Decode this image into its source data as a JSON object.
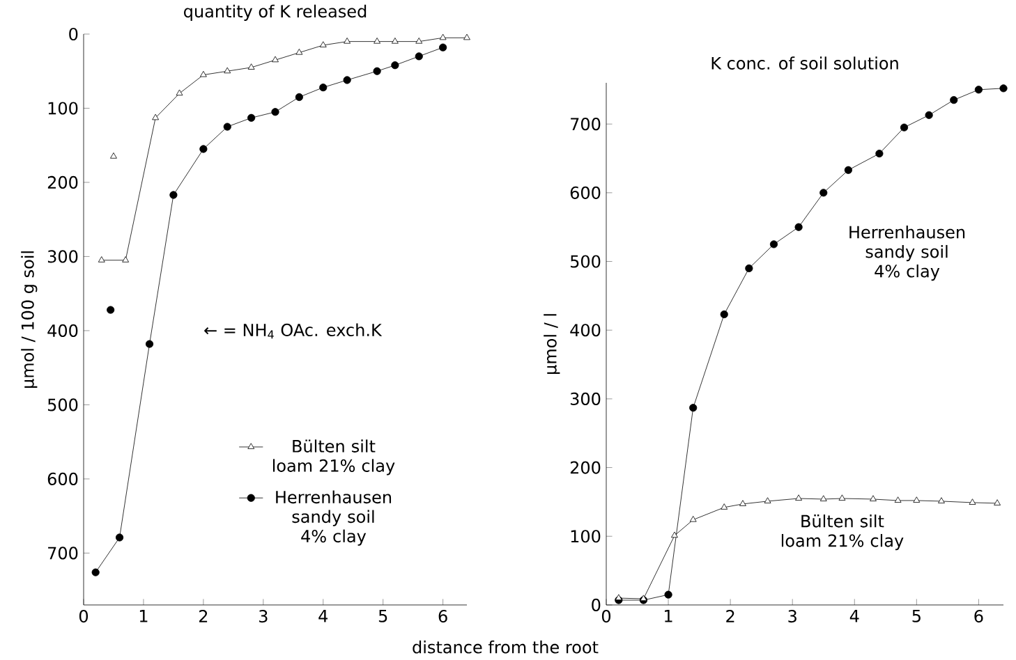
{
  "chart_data": [
    {
      "type": "line",
      "title": "quantity of K released",
      "xlabel": "distance from the root",
      "ylabel": "µmol / 100 g soil",
      "xlim": [
        0,
        6.4
      ],
      "ylim": [
        770,
        0
      ],
      "xticks": [
        0,
        1,
        2,
        3,
        4,
        5,
        6
      ],
      "yticks": [
        0,
        100,
        200,
        300,
        400,
        500,
        600,
        700
      ],
      "legend": "right",
      "line_style": "solid",
      "annotations": [
        "← = NH$_{4}$ OAc. exch.K"
      ],
      "series": [
        {
          "name": "Bülten silt loam 21% clay",
          "color": "#000000",
          "marker": "triangle",
          "x": [
            0.3,
            0.7,
            1.2,
            1.6,
            2.0,
            2.4,
            2.8,
            3.2,
            3.6,
            4.0,
            4.4,
            4.9,
            5.2,
            5.6,
            6.0,
            6.4
          ],
          "values": [
            305,
            305,
            113,
            80,
            55,
            50,
            45,
            35,
            25,
            15,
            10,
            10,
            10,
            10,
            5,
            5
          ]
        },
        {
          "name": "Herrenhausen sandy soil 4% clay",
          "color": "#000000",
          "marker": "circle",
          "x": [
            0.2,
            0.6,
            1.1,
            1.5,
            2.0,
            2.4,
            2.8,
            3.2,
            3.6,
            4.0,
            4.4,
            4.9,
            5.2,
            5.6,
            6.0
          ],
          "values": [
            726,
            679,
            418,
            217,
            155,
            125,
            113,
            105,
            85,
            72,
            62,
            50,
            42,
            30,
            18
          ]
        },
        {
          "type": "scatter",
          "color": "#000000",
          "marker": "triangle",
          "x": [
            0.5
          ],
          "values": [
            165
          ]
        },
        {
          "type": "scatter",
          "color": "#000000",
          "marker": "circle",
          "x": [
            0.45
          ],
          "values": [
            372
          ]
        }
      ]
    },
    {
      "type": "line",
      "title": "K conc. of soil solution",
      "ylabel": "µmol / l",
      "xlim": [
        0,
        6.4
      ],
      "ylim": [
        0,
        760
      ],
      "xticks": [
        0,
        1,
        2,
        3,
        4,
        5,
        6
      ],
      "yticks": [
        0,
        100,
        200,
        300,
        400,
        500,
        600,
        700
      ],
      "legend": false,
      "line_style": "solid",
      "series": [
        {
          "name": "Herrenhausen sandy soil 4% clay",
          "color": "#000000",
          "marker": "circle",
          "x": [
            0.2,
            0.6,
            1.0,
            1.4,
            1.9,
            2.3,
            2.7,
            3.1,
            3.5,
            3.9,
            4.4,
            4.8,
            5.2,
            5.6,
            6.0,
            6.4
          ],
          "values": [
            7,
            7,
            15,
            287,
            423,
            490,
            525,
            550,
            600,
            633,
            657,
            695,
            713,
            735,
            750,
            752
          ]
        },
        {
          "name": "Bülten silt loam 21% clay",
          "color": "#000000",
          "marker": "triangle",
          "x": [
            0.2,
            0.6,
            1.1,
            1.4,
            1.9,
            2.2,
            2.6,
            3.1,
            3.5,
            3.8,
            4.3,
            4.7,
            5.0,
            5.4,
            5.9,
            6.3
          ],
          "values": [
            10,
            9,
            101,
            124,
            142,
            147,
            151,
            155,
            154,
            155,
            154,
            152,
            152,
            151,
            149,
            148
          ]
        }
      ]
    }
  ]
}
